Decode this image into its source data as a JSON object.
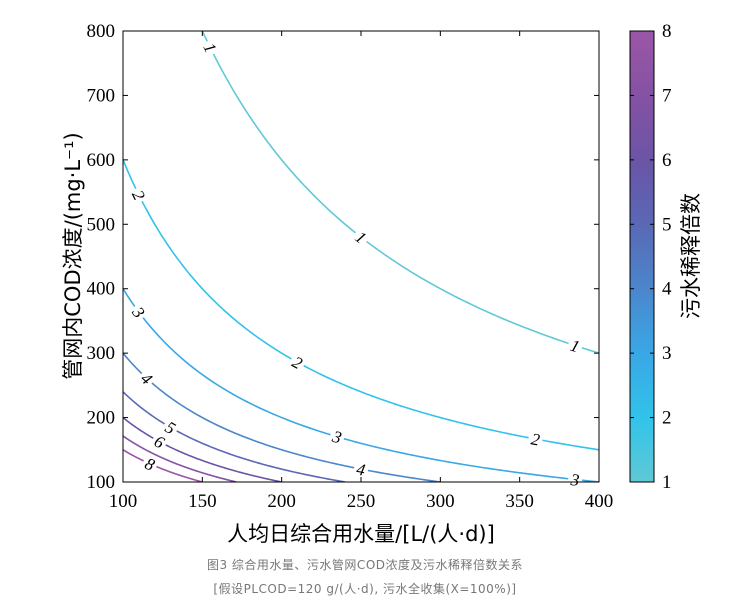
{
  "chart_data": {
    "type": "contour",
    "xlabel": "人均日综合用水量/[L/(人·d)]",
    "ylabel": "管网内COD浓度/(mg·L⁻¹)",
    "colorbar_label": "污水稀释倍数",
    "xlim": [
      100,
      400
    ],
    "ylim": [
      100,
      800
    ],
    "x_ticks": [
      "100",
      "150",
      "200",
      "250",
      "300",
      "350",
      "400"
    ],
    "y_ticks": [
      "100",
      "200",
      "300",
      "400",
      "500",
      "600",
      "700",
      "800"
    ],
    "colorbar_range": [
      1,
      8
    ],
    "colorbar_ticks": [
      "1",
      "2",
      "3",
      "4",
      "5",
      "6",
      "7",
      "8"
    ],
    "function": "dilution = 120000 / (x * y)",
    "levels": [
      1,
      2,
      3,
      4,
      5,
      6,
      7,
      8
    ],
    "colormap": [
      "#5fc9d6",
      "#31c3ea",
      "#3aa7e6",
      "#4b86cc",
      "#5a68b5",
      "#6b54a6",
      "#8552a4",
      "#9b56a6"
    ],
    "contour_labels": [
      {
        "level": 1,
        "text": "1",
        "x": 155
      },
      {
        "level": 1,
        "text": "1",
        "x": 250
      },
      {
        "level": 1,
        "text": "1",
        "x": 385
      },
      {
        "level": 2,
        "text": "2",
        "x": 110
      },
      {
        "level": 2,
        "text": "2",
        "x": 210
      },
      {
        "level": 2,
        "text": "2",
        "x": 360
      },
      {
        "level": 3,
        "text": "3",
        "x": 110
      },
      {
        "level": 3,
        "text": "3",
        "x": 235
      },
      {
        "level": 3,
        "text": "3",
        "x": 385
      },
      {
        "level": 4,
        "text": "4",
        "x": 115
      },
      {
        "level": 4,
        "text": "4",
        "x": 250
      },
      {
        "level": 5,
        "text": "5",
        "x": 130
      },
      {
        "level": 6,
        "text": "6",
        "x": 123
      },
      {
        "level": 8,
        "text": "8",
        "x": 117
      }
    ]
  },
  "caption": {
    "line1": "图3 综合用水量、污水管网COD浓度及污水稀释倍数关系",
    "line2": "[假设PLCOD=120 g/(人·d), 污水全收集(X=100%)]"
  }
}
